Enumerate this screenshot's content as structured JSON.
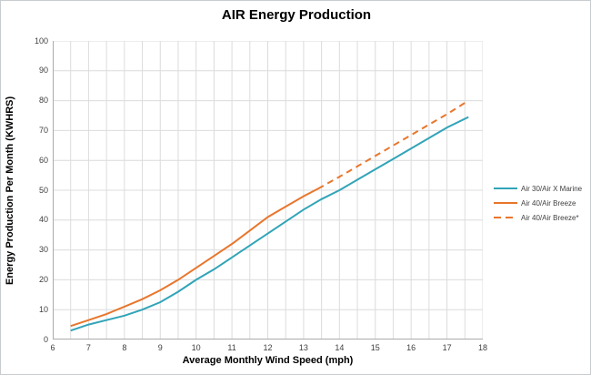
{
  "title": "AIR Energy Production",
  "colors": {
    "teal_series": "#31A4B8",
    "orange_series": "#E8762C",
    "gridline": "#DCDCDC",
    "axis_line": "#ABABAB",
    "tick_text": "#3f3f3f"
  },
  "chart_data": {
    "type": "line",
    "title": "AIR Energy Production",
    "xlabel": "Average Monthly Wind Speed (mph)",
    "ylabel": "Energy Production Per Month (KWHRS)",
    "xlim": [
      6,
      18
    ],
    "ylim": [
      0,
      100
    ],
    "x_ticks": [
      6,
      7,
      8,
      9,
      10,
      11,
      12,
      13,
      14,
      15,
      16,
      17,
      18
    ],
    "y_ticks": [
      0,
      10,
      20,
      30,
      40,
      50,
      60,
      70,
      80,
      90,
      100
    ],
    "x_grid_step": 0.5,
    "y_grid_step": 10,
    "grid": true,
    "legend_position": "right",
    "series": [
      {
        "name": "Air 30/Air X Marine",
        "color": "#31A4B8",
        "style": "solid",
        "x": [
          6.5,
          7,
          7.5,
          8,
          8.5,
          9,
          9.5,
          10,
          10.5,
          11,
          11.5,
          12,
          12.5,
          13,
          13.5,
          14,
          14.5,
          15,
          15.5,
          16,
          16.5,
          17,
          17.6
        ],
        "y": [
          3,
          5,
          6.5,
          8,
          10,
          12.5,
          16,
          20,
          23.5,
          27.5,
          31.5,
          35.5,
          39.5,
          43.5,
          47,
          50,
          53.5,
          57,
          60.5,
          64,
          67.5,
          71,
          74.5
        ]
      },
      {
        "name": "Air 40/Air Breeze",
        "color": "#E8762C",
        "style": "solid",
        "x": [
          6.5,
          7,
          7.5,
          8,
          8.5,
          9,
          9.5,
          10,
          10.5,
          11,
          11.5,
          12,
          12.5,
          13,
          13.4
        ],
        "y": [
          4.5,
          6.5,
          8.5,
          11,
          13.5,
          16.5,
          20,
          24,
          28,
          32,
          36.5,
          41,
          44.5,
          48,
          50.5
        ]
      },
      {
        "name": "Air 40/Air Breeze*",
        "color": "#E8762C",
        "style": "dashed",
        "x": [
          13.4,
          14,
          14.5,
          15,
          15.5,
          16,
          16.5,
          17,
          17.6
        ],
        "y": [
          50.5,
          54.5,
          58,
          61.5,
          65,
          68.5,
          72,
          75.5,
          80
        ]
      }
    ]
  }
}
